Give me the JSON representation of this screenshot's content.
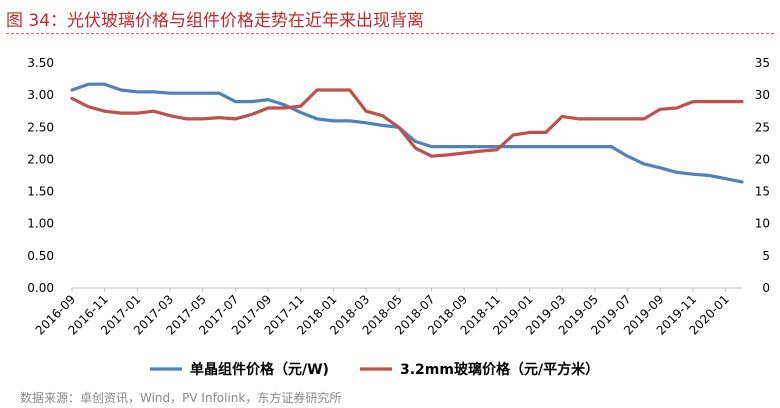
{
  "figure": {
    "title": "图 34：光伏玻璃价格与组件价格走势在近年来出现背离",
    "source": "数据来源：卓创资讯，Wind，PV Infolink，东方证券研究所"
  },
  "chart_data": {
    "type": "line",
    "title": "",
    "x_tick_labels": [
      "2016-09",
      "2016-11",
      "2017-01",
      "2017-03",
      "2017-05",
      "2017-07",
      "2017-09",
      "2017-11",
      "2018-01",
      "2018-03",
      "2018-05",
      "2018-07",
      "2018-09",
      "2018-11",
      "2019-01",
      "2019-03",
      "2019-05",
      "2019-07",
      "2019-09",
      "2019-11",
      "2020-01"
    ],
    "y_left": {
      "min": 0,
      "max": 3.5,
      "ticks": [
        "0.00",
        "0.50",
        "1.00",
        "1.50",
        "2.00",
        "2.50",
        "3.00",
        "3.50"
      ]
    },
    "y_right": {
      "min": 0,
      "max": 35,
      "ticks": [
        "0",
        "5",
        "10",
        "15",
        "20",
        "25",
        "30",
        "35"
      ]
    },
    "grid": false,
    "legend_position": "bottom",
    "series": [
      {
        "name": "单晶组件价格（元/W)",
        "axis": "left",
        "color": "#4f81bd",
        "points": [
          [
            "2016-09",
            3.08
          ],
          [
            "2016-10",
            3.17
          ],
          [
            "2016-11",
            3.17
          ],
          [
            "2016-12",
            3.08
          ],
          [
            "2017-01",
            3.05
          ],
          [
            "2017-02",
            3.05
          ],
          [
            "2017-03",
            3.03
          ],
          [
            "2017-04",
            3.03
          ],
          [
            "2017-05",
            3.03
          ],
          [
            "2017-06",
            3.03
          ],
          [
            "2017-07",
            2.9
          ],
          [
            "2017-08",
            2.9
          ],
          [
            "2017-09",
            2.93
          ],
          [
            "2017-10",
            2.85
          ],
          [
            "2017-11",
            2.73
          ],
          [
            "2017-12",
            2.63
          ],
          [
            "2018-01",
            2.6
          ],
          [
            "2018-02",
            2.6
          ],
          [
            "2018-03",
            2.57
          ],
          [
            "2018-04",
            2.53
          ],
          [
            "2018-05",
            2.5
          ],
          [
            "2018-06",
            2.28
          ],
          [
            "2018-07",
            2.2
          ],
          [
            "2018-08",
            2.2
          ],
          [
            "2018-09",
            2.2
          ],
          [
            "2018-10",
            2.2
          ],
          [
            "2018-11",
            2.2
          ],
          [
            "2018-12",
            2.2
          ],
          [
            "2019-01",
            2.2
          ],
          [
            "2019-02",
            2.2
          ],
          [
            "2019-03",
            2.2
          ],
          [
            "2019-04",
            2.2
          ],
          [
            "2019-05",
            2.2
          ],
          [
            "2019-06",
            2.2
          ],
          [
            "2019-07",
            2.05
          ],
          [
            "2019-08",
            1.93
          ],
          [
            "2019-09",
            1.87
          ],
          [
            "2019-10",
            1.8
          ],
          [
            "2019-11",
            1.77
          ],
          [
            "2019-12",
            1.75
          ],
          [
            "2020-01",
            1.7
          ],
          [
            "2020-02",
            1.65
          ]
        ]
      },
      {
        "name": "3.2mm玻璃价格（元/平方米）",
        "axis": "right",
        "color": "#c0504d",
        "points": [
          [
            "2016-09",
            29.5
          ],
          [
            "2016-10",
            28.2
          ],
          [
            "2016-11",
            27.5
          ],
          [
            "2016-12",
            27.2
          ],
          [
            "2017-01",
            27.2
          ],
          [
            "2017-02",
            27.5
          ],
          [
            "2017-03",
            26.8
          ],
          [
            "2017-04",
            26.3
          ],
          [
            "2017-05",
            26.3
          ],
          [
            "2017-06",
            26.5
          ],
          [
            "2017-07",
            26.3
          ],
          [
            "2017-08",
            27.0
          ],
          [
            "2017-09",
            28.0
          ],
          [
            "2017-10",
            28.0
          ],
          [
            "2017-11",
            28.3
          ],
          [
            "2017-12",
            30.8
          ],
          [
            "2018-01",
            30.8
          ],
          [
            "2018-02",
            30.8
          ],
          [
            "2018-03",
            27.5
          ],
          [
            "2018-04",
            26.8
          ],
          [
            "2018-05",
            25.0
          ],
          [
            "2018-06",
            21.8
          ],
          [
            "2018-07",
            20.5
          ],
          [
            "2018-08",
            20.7
          ],
          [
            "2018-09",
            21.0
          ],
          [
            "2018-10",
            21.3
          ],
          [
            "2018-11",
            21.5
          ],
          [
            "2018-12",
            23.8
          ],
          [
            "2019-01",
            24.2
          ],
          [
            "2019-02",
            24.2
          ],
          [
            "2019-03",
            26.7
          ],
          [
            "2019-04",
            26.3
          ],
          [
            "2019-05",
            26.3
          ],
          [
            "2019-06",
            26.3
          ],
          [
            "2019-07",
            26.3
          ],
          [
            "2019-08",
            26.3
          ],
          [
            "2019-09",
            27.8
          ],
          [
            "2019-10",
            28.0
          ],
          [
            "2019-11",
            29.0
          ],
          [
            "2019-12",
            29.0
          ],
          [
            "2020-01",
            29.0
          ],
          [
            "2020-02",
            29.0
          ]
        ]
      }
    ]
  }
}
